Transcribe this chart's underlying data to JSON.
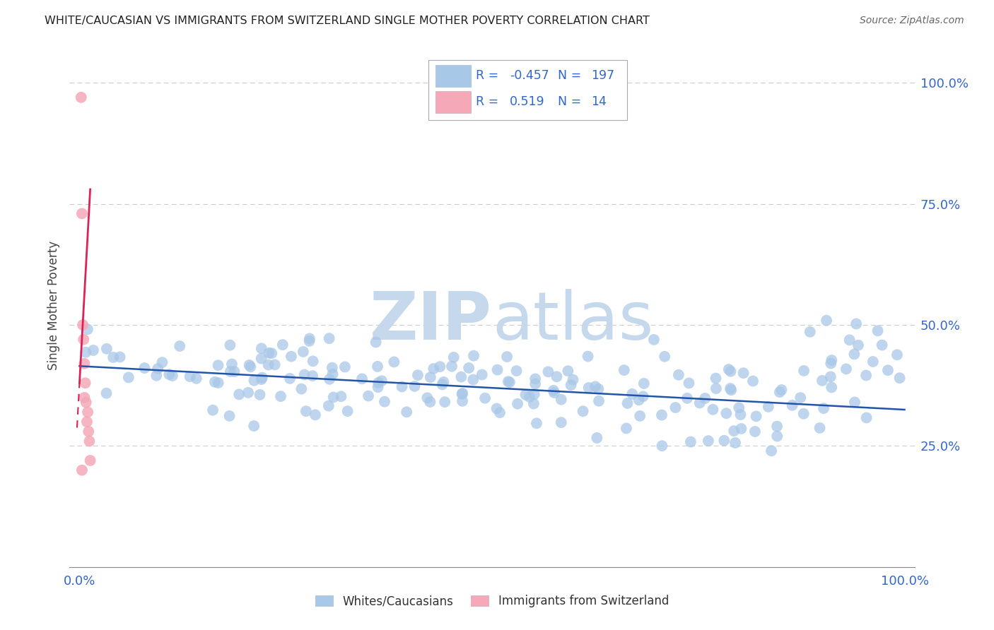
{
  "title": "WHITE/CAUCASIAN VS IMMIGRANTS FROM SWITZERLAND SINGLE MOTHER POVERTY CORRELATION CHART",
  "source": "Source: ZipAtlas.com",
  "ylabel": "Single Mother Poverty",
  "blue_color": "#a8c8e8",
  "pink_color": "#f4a8b8",
  "trendline_blue": "#2255aa",
  "trendline_pink": "#dd2255",
  "watermark_zip_color": "#c5d8ec",
  "watermark_atlas_color": "#c5d8ec",
  "legend_text_color": "#3366cc",
  "background_color": "#ffffff",
  "grid_color": "#cccccc",
  "tick_color": "#3366cc",
  "title_color": "#222222",
  "source_color": "#666666",
  "ylabel_color": "#444444"
}
